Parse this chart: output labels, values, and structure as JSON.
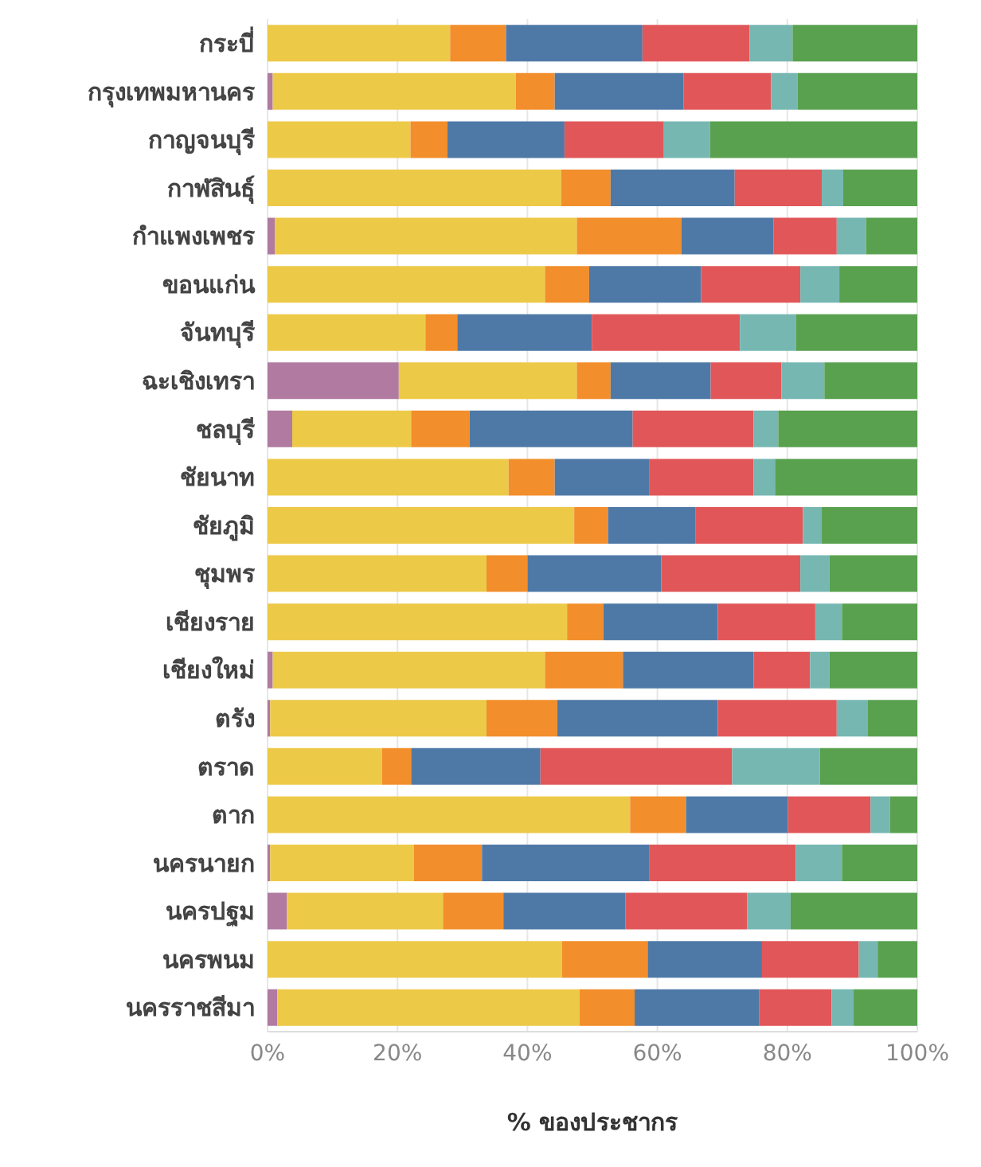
{
  "chart_data": {
    "type": "bar",
    "orientation": "horizontal",
    "stacked": true,
    "xlabel": "% ของประชากร",
    "legend": false,
    "grid": "x",
    "categories": [
      "กระบี่",
      "กรุงเทพมหานคร",
      "กาญจนบุรี",
      "กาฬสินธุ์",
      "กำแพงเพชร",
      "ขอนแก่น",
      "จันทบุรี",
      "ฉะเชิงเทรา",
      "ชลบุรี",
      "ชัยนาท",
      "ชัยภูมิ",
      "ชุมพร",
      "เชียงราย",
      "เชียงใหม่",
      "ตรัง",
      "ตราด",
      "ตาก",
      "นครนายก",
      "นครปฐม",
      "นครพนม",
      "นครราชสีมา"
    ],
    "xlim": [
      0,
      100
    ],
    "xticks": [
      {
        "value": 0,
        "label": "0%"
      },
      {
        "value": 20,
        "label": "20%"
      },
      {
        "value": 40,
        "label": "40%"
      },
      {
        "value": 60,
        "label": "60%"
      },
      {
        "value": 80,
        "label": "80%"
      },
      {
        "value": 100,
        "label": "100%"
      }
    ],
    "series": [
      {
        "color": "#b07aa1",
        "values": [
          0,
          0.8,
          0,
          0,
          1.1,
          0,
          0,
          20.2,
          3.8,
          0,
          0,
          0,
          0,
          0.8,
          0.4,
          0,
          0,
          0.4,
          3.0,
          0,
          1.5
        ]
      },
      {
        "color": "#edc948",
        "values": [
          28.1,
          37.4,
          22.0,
          45.2,
          46.5,
          42.7,
          24.3,
          27.4,
          18.3,
          37.1,
          47.2,
          33.7,
          46.1,
          41.9,
          33.3,
          17.6,
          55.8,
          22.1,
          24.0,
          45.3,
          46.5
        ]
      },
      {
        "color": "#f28e2b",
        "values": [
          8.6,
          6.0,
          5.7,
          7.6,
          16.1,
          6.8,
          4.9,
          5.2,
          9.0,
          7.1,
          5.2,
          6.3,
          5.6,
          12.0,
          10.9,
          4.5,
          8.6,
          10.5,
          9.3,
          13.2,
          8.5
        ]
      },
      {
        "color": "#4e79a7",
        "values": [
          21.0,
          19.8,
          18.0,
          19.1,
          14.2,
          17.2,
          20.7,
          15.4,
          25.1,
          14.6,
          13.5,
          20.6,
          17.6,
          20.1,
          24.7,
          19.9,
          15.7,
          25.8,
          18.8,
          17.6,
          19.2
        ]
      },
      {
        "color": "#e15759",
        "values": [
          16.5,
          13.5,
          15.3,
          13.4,
          9.7,
          15.3,
          22.8,
          10.9,
          18.6,
          16.0,
          16.5,
          21.4,
          15.0,
          8.7,
          18.3,
          29.5,
          12.7,
          22.5,
          18.7,
          14.9,
          11.1
        ]
      },
      {
        "color": "#76b7b2",
        "values": [
          6.6,
          4.1,
          7.1,
          3.3,
          4.5,
          6.0,
          8.6,
          6.6,
          3.8,
          3.3,
          2.9,
          4.5,
          4.1,
          3.0,
          4.8,
          13.5,
          3.0,
          7.1,
          6.7,
          2.9,
          3.4
        ]
      },
      {
        "color": "#59a14f",
        "values": [
          19.2,
          18.4,
          31.9,
          11.4,
          7.9,
          12.0,
          18.7,
          14.3,
          21.4,
          21.9,
          14.7,
          13.5,
          11.6,
          13.5,
          7.6,
          15.0,
          4.2,
          11.6,
          19.5,
          6.1,
          9.8
        ]
      }
    ]
  }
}
